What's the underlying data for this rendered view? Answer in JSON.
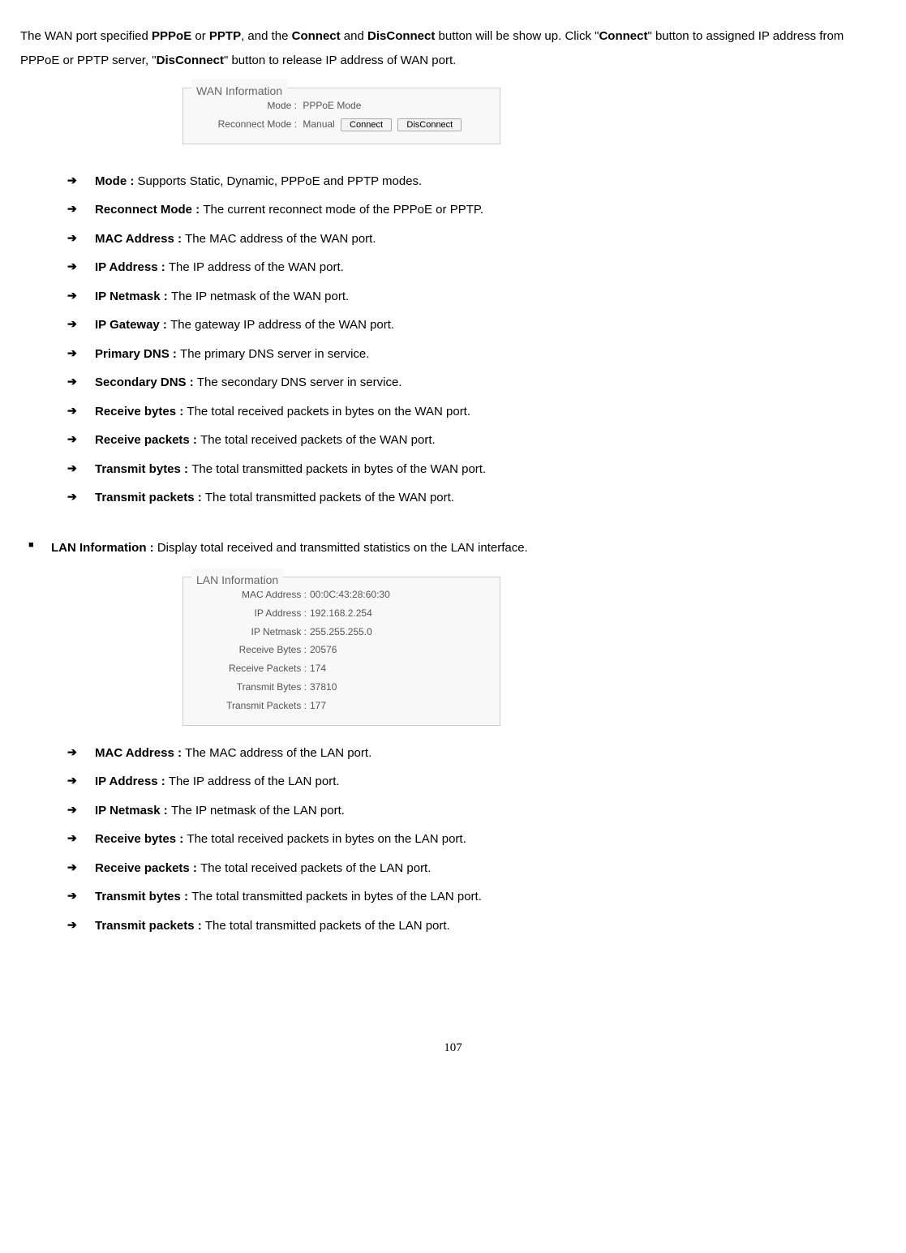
{
  "intro": {
    "part1": "The WAN port specified ",
    "b1": "PPPoE",
    "part2": " or ",
    "b2": "PPTP",
    "part3": ", and the ",
    "b3": "Connect",
    "part4": " and ",
    "b4": "DisConnect",
    "part5": " button will be show up. Click \"",
    "b5": "Connect",
    "part6": "\" button to assigned IP address from PPPoE or PPTP server, \"",
    "b6": "DisConnect",
    "part7": "\" button to release IP address of WAN port."
  },
  "wan_panel": {
    "legend": "WAN Information",
    "mode_label": "Mode :",
    "mode_value": "PPPoE Mode",
    "reconnect_label": "Reconnect Mode :",
    "reconnect_value": "Manual",
    "connect_btn": "Connect",
    "disconnect_btn": "DisConnect"
  },
  "wan_items": [
    {
      "term": "Mode : ",
      "desc": "Supports Static, Dynamic, PPPoE and PPTP modes."
    },
    {
      "term": "Reconnect Mode : ",
      "desc": "The current reconnect mode of the PPPoE or PPTP."
    },
    {
      "term": "MAC Address : ",
      "desc": "The MAC address of the WAN port."
    },
    {
      "term": "IP Address : ",
      "desc": "The IP address of the WAN port."
    },
    {
      "term": "IP Netmask : ",
      "desc": "The IP netmask of the WAN port."
    },
    {
      "term": "IP Gateway : ",
      "desc": "The gateway IP address of the WAN port."
    },
    {
      "term": "Primary DNS : ",
      "desc": "The primary DNS server in service."
    },
    {
      "term": "Secondary DNS : ",
      "desc": "The secondary DNS server in service."
    },
    {
      "term": "Receive bytes : ",
      "desc": "The total received packets in bytes on the WAN port."
    },
    {
      "term": "Receive packets : ",
      "desc": "The total received packets of the WAN port."
    },
    {
      "term": "Transmit bytes : ",
      "desc": "The total transmitted packets in bytes of the WAN port."
    },
    {
      "term": "Transmit packets : ",
      "desc": "The total transmitted packets of the WAN port."
    }
  ],
  "lan_heading": {
    "term": "LAN Information : ",
    "desc": "Display total received and transmitted statistics on the LAN interface."
  },
  "lan_panel": {
    "legend": "LAN Information",
    "rows": [
      {
        "label": "MAC Address :",
        "value": "00:0C:43:28:60:30"
      },
      {
        "label": "IP Address :",
        "value": "192.168.2.254"
      },
      {
        "label": "IP Netmask :",
        "value": "255.255.255.0"
      },
      {
        "label": "Receive Bytes :",
        "value": "20576"
      },
      {
        "label": "Receive Packets :",
        "value": "174"
      },
      {
        "label": "Transmit Bytes :",
        "value": "37810"
      },
      {
        "label": "Transmit Packets :",
        "value": "177"
      }
    ]
  },
  "lan_items": [
    {
      "term": "MAC Address : ",
      "desc": "The MAC address of the LAN port."
    },
    {
      "term": "IP Address : ",
      "desc": "The IP address of the LAN port."
    },
    {
      "term": "IP Netmask : ",
      "desc": "The IP netmask of the LAN port."
    },
    {
      "term": "Receive bytes : ",
      "desc": "The total received packets in bytes on the LAN port."
    },
    {
      "term": "Receive packets : ",
      "desc": "The total received packets of the LAN port."
    },
    {
      "term": "Transmit bytes : ",
      "desc": "The total transmitted packets in bytes of the LAN port."
    },
    {
      "term": "Transmit packets : ",
      "desc": "The total transmitted packets of the LAN port."
    }
  ],
  "page_number": "107"
}
